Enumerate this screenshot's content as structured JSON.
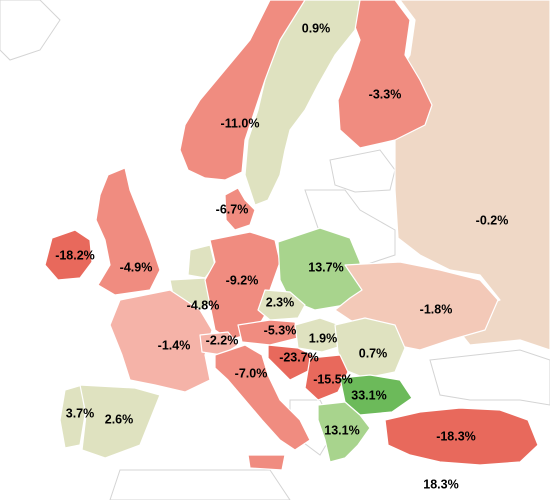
{
  "palette": {
    "strong_negative": "#e8695c",
    "negative": "#f08c80",
    "mild_negative": "#f5b3a8",
    "slight_negative": "#f3c9b8",
    "neutral_tan": "#efd8c6",
    "neutral_green": "#dfe2c0",
    "positive": "#a8d48d",
    "strong_positive": "#6cba5a",
    "no_data": "#ffffff"
  },
  "regions": [
    {
      "id": "sweden",
      "name": "Sweden",
      "value": "0.9%",
      "color": "#dfe2c0"
    },
    {
      "id": "finland",
      "name": "Finland",
      "value": "-3.3%",
      "color": "#f08c80"
    },
    {
      "id": "norway",
      "name": "Norway",
      "value": "-11.0%",
      "color": "#f08c80"
    },
    {
      "id": "russia",
      "name": "Russia",
      "value": "-0.2%",
      "color": "#efd8c6"
    },
    {
      "id": "denmark",
      "name": "Denmark",
      "value": "-6.7%",
      "color": "#f08c80"
    },
    {
      "id": "ireland",
      "name": "Ireland",
      "value": "-18.2%",
      "color": "#e8695c"
    },
    {
      "id": "uk",
      "name": "United Kingdom",
      "value": "-4.9%",
      "color": "#f08c80"
    },
    {
      "id": "netherlands",
      "name": "Netherlands",
      "value": "",
      "color": "#dfe2c0"
    },
    {
      "id": "belgium",
      "name": "Belgium",
      "value": "-4.8%",
      "color": "#dfe2c0"
    },
    {
      "id": "germany",
      "name": "Germany",
      "value": "-9.2%",
      "color": "#f08c80"
    },
    {
      "id": "poland",
      "name": "Poland",
      "value": "13.7%",
      "color": "#a8d48d"
    },
    {
      "id": "czechia",
      "name": "Czechia",
      "value": "2.3%",
      "color": "#dfe2c0"
    },
    {
      "id": "ukraine",
      "name": "Ukraine",
      "value": "-1.8%",
      "color": "#f3c9b8"
    },
    {
      "id": "france",
      "name": "France",
      "value": "-1.4%",
      "color": "#f5b3a8"
    },
    {
      "id": "switzerland",
      "name": "Switzerland",
      "value": "-2.2%",
      "color": "#f5b3a8"
    },
    {
      "id": "austria",
      "name": "Austria",
      "value": "-5.3%",
      "color": "#f08c80"
    },
    {
      "id": "hungary",
      "name": "Hungary",
      "value": "1.9%",
      "color": "#dfe2c0"
    },
    {
      "id": "romania",
      "name": "Romania",
      "value": "0.7%",
      "color": "#dfe2c0"
    },
    {
      "id": "croatia",
      "name": "Croatia",
      "value": "-23.7%",
      "color": "#e8695c"
    },
    {
      "id": "serbia",
      "name": "Serbia",
      "value": "-15.5%",
      "color": "#e8695c"
    },
    {
      "id": "italy",
      "name": "Italy",
      "value": "-7.0%",
      "color": "#f08c80"
    },
    {
      "id": "bulgaria",
      "name": "Bulgaria",
      "value": "33.1%",
      "color": "#6cba5a"
    },
    {
      "id": "portugal",
      "name": "Portugal",
      "value": "3.7%",
      "color": "#dfe2c0"
    },
    {
      "id": "spain",
      "name": "Spain",
      "value": "2.6%",
      "color": "#dfe2c0"
    },
    {
      "id": "greece",
      "name": "Greece",
      "value": "13.1%",
      "color": "#a8d48d"
    },
    {
      "id": "turkey",
      "name": "Turkey",
      "value": "-18.3%",
      "color": "#e8695c"
    },
    {
      "id": "cyprus",
      "name": "Cyprus",
      "value": "18.3%",
      "color": "#ffffff"
    }
  ]
}
